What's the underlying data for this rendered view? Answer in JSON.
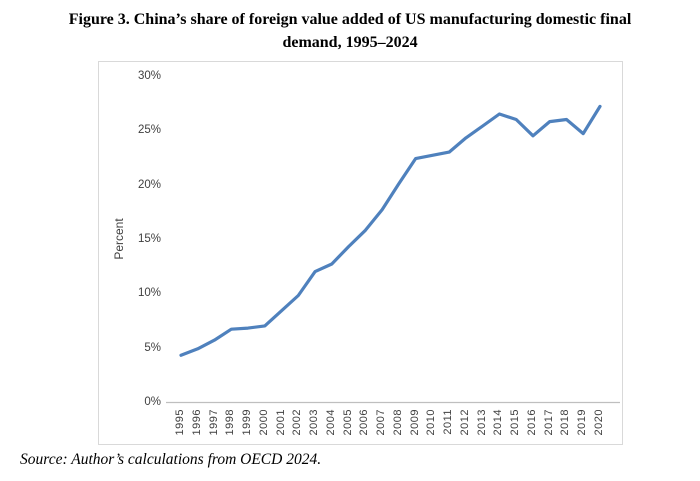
{
  "figure": {
    "title_line1": "Figure 3. China’s share of foreign value added of US manufacturing domestic final",
    "title_line2": "demand, 1995–2024",
    "source": "Source: Author’s calculations from OECD 2024."
  },
  "chart_data": {
    "type": "line",
    "title": "Figure 3. China’s share of foreign value added of US manufacturing domestic final demand, 1995–2024",
    "xlabel": "",
    "ylabel": "Percent",
    "x": [
      1995,
      1996,
      1997,
      1998,
      1999,
      2000,
      2001,
      2002,
      2003,
      2004,
      2005,
      2006,
      2007,
      2008,
      2009,
      2010,
      2011,
      2012,
      2013,
      2014,
      2015,
      2016,
      2017,
      2018,
      2019,
      2020
    ],
    "series": [
      {
        "name": "China share of foreign value added",
        "values": [
          4.3,
          4.9,
          5.7,
          6.7,
          6.8,
          7.0,
          8.4,
          9.8,
          12.0,
          12.7,
          14.3,
          15.8,
          17.7,
          20.1,
          22.4,
          22.7,
          23.0,
          24.3,
          25.4,
          26.5,
          26.0,
          24.5,
          25.8,
          26.0,
          24.7,
          27.2
        ]
      }
    ],
    "ylim": [
      0,
      30
    ],
    "ytick_values": [
      0,
      5,
      10,
      15,
      20,
      25,
      30
    ],
    "ytick_labels": [
      "0%",
      "5%",
      "10%",
      "15%",
      "20%",
      "25%",
      "30%"
    ],
    "grid": false,
    "legend": "none",
    "line_color": "#4f81bd",
    "axis_line_color": "#bfbfbf",
    "tick_text_color": "#404040"
  }
}
